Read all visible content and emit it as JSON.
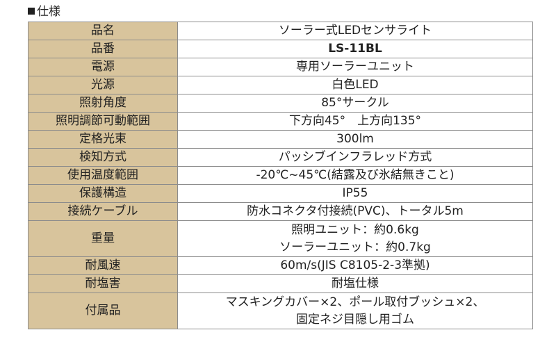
{
  "section_title": "仕様",
  "spec": {
    "rows": [
      {
        "label": "品名",
        "value": [
          "ソーラー式LEDセンサライト"
        ]
      },
      {
        "label": "品番",
        "value": [
          "LS-11BL"
        ],
        "bold": true
      },
      {
        "label": "電源",
        "value": [
          "専用ソーラーユニット"
        ]
      },
      {
        "label": "光源",
        "value": [
          "白色LED"
        ]
      },
      {
        "label": "照射角度",
        "value": [
          "85°サークル"
        ]
      },
      {
        "label": "照明調節可動範囲",
        "value": [
          "下方向45°　上方向135°"
        ]
      },
      {
        "label": "定格光束",
        "value": [
          "300lm"
        ]
      },
      {
        "label": "検知方式",
        "value": [
          "パッシブインフラレッド方式"
        ]
      },
      {
        "label": "使用温度範囲",
        "value": [
          "-20℃~45℃(結露及び氷結無きこと)"
        ]
      },
      {
        "label": "保護構造",
        "value": [
          "IP55"
        ]
      },
      {
        "label": "接続ケーブル",
        "value": [
          "防水コネクタ付接続(PVC)、トータル5m"
        ]
      },
      {
        "label": "重量",
        "value": [
          "照明ユニット：約0.6kg",
          "ソーラーユニット：約0.7kg"
        ]
      },
      {
        "label": "耐風速",
        "value": [
          "60m/s(JIS C8105-2-3準拠)"
        ]
      },
      {
        "label": "耐塩害",
        "value": [
          "耐塩仕様"
        ]
      },
      {
        "label": "付属品",
        "value": [
          "マスキングカバー×2、ポール取付ブッシュ×2、",
          "固定ネジ目隠し用ゴム"
        ]
      }
    ]
  },
  "colors": {
    "label_bg": "#d8c49c",
    "border": "#8c8c8c"
  }
}
